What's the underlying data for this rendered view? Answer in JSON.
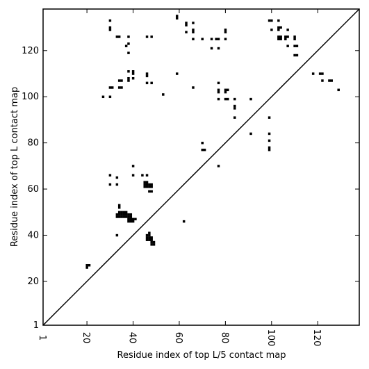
{
  "chart_data": {
    "type": "heatmap",
    "title": "",
    "xlabel": "Residue index of top L/5 contact map",
    "ylabel": "Residue index of top L contact map",
    "xlim": [
      1,
      138
    ],
    "ylim": [
      1,
      138
    ],
    "xticks": [
      1,
      20,
      40,
      60,
      80,
      100,
      120
    ],
    "yticks": [
      1,
      20,
      40,
      60,
      80,
      100,
      120
    ],
    "diagonal": true,
    "grid": false,
    "cell_color": "#000000",
    "upper_triangle_contacts": [
      [
        59,
        135
      ],
      [
        59,
        134
      ],
      [
        63,
        132
      ],
      [
        63,
        131
      ],
      [
        66,
        132
      ],
      [
        66,
        129
      ],
      [
        66,
        128
      ],
      [
        63,
        128
      ],
      [
        66,
        125
      ],
      [
        70,
        125
      ],
      [
        74,
        125
      ],
      [
        76,
        125
      ],
      [
        77,
        125
      ],
      [
        80,
        129
      ],
      [
        80,
        128
      ],
      [
        80,
        125
      ],
      [
        74,
        121
      ],
      [
        77,
        121
      ],
      [
        59,
        110
      ],
      [
        66,
        104
      ],
      [
        77,
        106
      ],
      [
        77,
        103
      ],
      [
        77,
        102
      ],
      [
        77,
        99
      ],
      [
        80,
        103
      ],
      [
        81,
        103
      ],
      [
        80,
        102
      ],
      [
        80,
        99
      ],
      [
        81,
        99
      ],
      [
        84,
        99
      ],
      [
        84,
        96
      ],
      [
        84,
        95
      ],
      [
        91,
        99
      ],
      [
        84,
        91
      ],
      [
        53,
        101
      ],
      [
        99,
        133
      ],
      [
        100,
        133
      ],
      [
        103,
        133
      ],
      [
        103,
        130
      ],
      [
        104,
        130
      ],
      [
        103,
        129
      ],
      [
        100,
        129
      ],
      [
        103,
        126
      ],
      [
        104,
        126
      ],
      [
        103,
        125
      ],
      [
        104,
        125
      ],
      [
        106,
        126
      ],
      [
        107,
        126
      ],
      [
        106,
        125
      ],
      [
        107,
        129
      ],
      [
        110,
        126
      ],
      [
        110,
        125
      ],
      [
        110,
        122
      ],
      [
        111,
        122
      ],
      [
        107,
        122
      ],
      [
        110,
        118
      ],
      [
        111,
        118
      ],
      [
        118,
        110
      ],
      [
        121,
        110
      ],
      [
        122,
        110
      ],
      [
        122,
        107
      ],
      [
        125,
        107
      ],
      [
        126,
        107
      ],
      [
        129,
        103
      ]
    ],
    "lower_triangle_contacts": [
      [
        30,
        133
      ],
      [
        30,
        130
      ],
      [
        30,
        129
      ],
      [
        33,
        126
      ],
      [
        34,
        126
      ],
      [
        38,
        126
      ],
      [
        46,
        126
      ],
      [
        48,
        126
      ],
      [
        38,
        123
      ],
      [
        37,
        122
      ],
      [
        38,
        119
      ],
      [
        38,
        111
      ],
      [
        40,
        111
      ],
      [
        40,
        110
      ],
      [
        38,
        108
      ],
      [
        40,
        108
      ],
      [
        38,
        107
      ],
      [
        34,
        107
      ],
      [
        35,
        107
      ],
      [
        46,
        110
      ],
      [
        46,
        109
      ],
      [
        46,
        106
      ],
      [
        48,
        106
      ],
      [
        31,
        104
      ],
      [
        30,
        104
      ],
      [
        34,
        104
      ],
      [
        35,
        104
      ],
      [
        27,
        100
      ],
      [
        30,
        100
      ],
      [
        30,
        66
      ],
      [
        33,
        65
      ],
      [
        30,
        62
      ],
      [
        33,
        62
      ],
      [
        40,
        70
      ],
      [
        40,
        66
      ],
      [
        44,
        66
      ],
      [
        46,
        66
      ],
      [
        45,
        63
      ],
      [
        46,
        63
      ],
      [
        45,
        62
      ],
      [
        46,
        62
      ],
      [
        47,
        62
      ],
      [
        48,
        62
      ],
      [
        45,
        61
      ],
      [
        46,
        61
      ],
      [
        47,
        61
      ],
      [
        48,
        61
      ],
      [
        47,
        59
      ],
      [
        48,
        59
      ],
      [
        34,
        53
      ],
      [
        34,
        52
      ],
      [
        34,
        50
      ],
      [
        35,
        50
      ],
      [
        36,
        50
      ],
      [
        37,
        50
      ],
      [
        33,
        49
      ],
      [
        34,
        49
      ],
      [
        35,
        49
      ],
      [
        36,
        49
      ],
      [
        37,
        49
      ],
      [
        38,
        49
      ],
      [
        39,
        49
      ],
      [
        33,
        48
      ],
      [
        34,
        48
      ],
      [
        35,
        48
      ],
      [
        36,
        48
      ],
      [
        37,
        48
      ],
      [
        38,
        48
      ],
      [
        39,
        48
      ],
      [
        38,
        47
      ],
      [
        39,
        47
      ],
      [
        40,
        47
      ],
      [
        41,
        47
      ],
      [
        38,
        46
      ],
      [
        39,
        46
      ],
      [
        40,
        46
      ],
      [
        47,
        41
      ],
      [
        46,
        40
      ],
      [
        47,
        40
      ],
      [
        46,
        39
      ],
      [
        47,
        39
      ],
      [
        48,
        39
      ],
      [
        46,
        38
      ],
      [
        47,
        38
      ],
      [
        48,
        38
      ],
      [
        48,
        37
      ],
      [
        49,
        37
      ],
      [
        48,
        36
      ],
      [
        49,
        36
      ],
      [
        33,
        40
      ],
      [
        20,
        26
      ],
      [
        21,
        27
      ],
      [
        20,
        27
      ],
      [
        62,
        46
      ],
      [
        70,
        80
      ],
      [
        70,
        77
      ],
      [
        71,
        77
      ],
      [
        77,
        70
      ],
      [
        91,
        84
      ],
      [
        99,
        91
      ],
      [
        99,
        84
      ],
      [
        99,
        81
      ],
      [
        99,
        77
      ],
      [
        99,
        78
      ]
    ]
  }
}
